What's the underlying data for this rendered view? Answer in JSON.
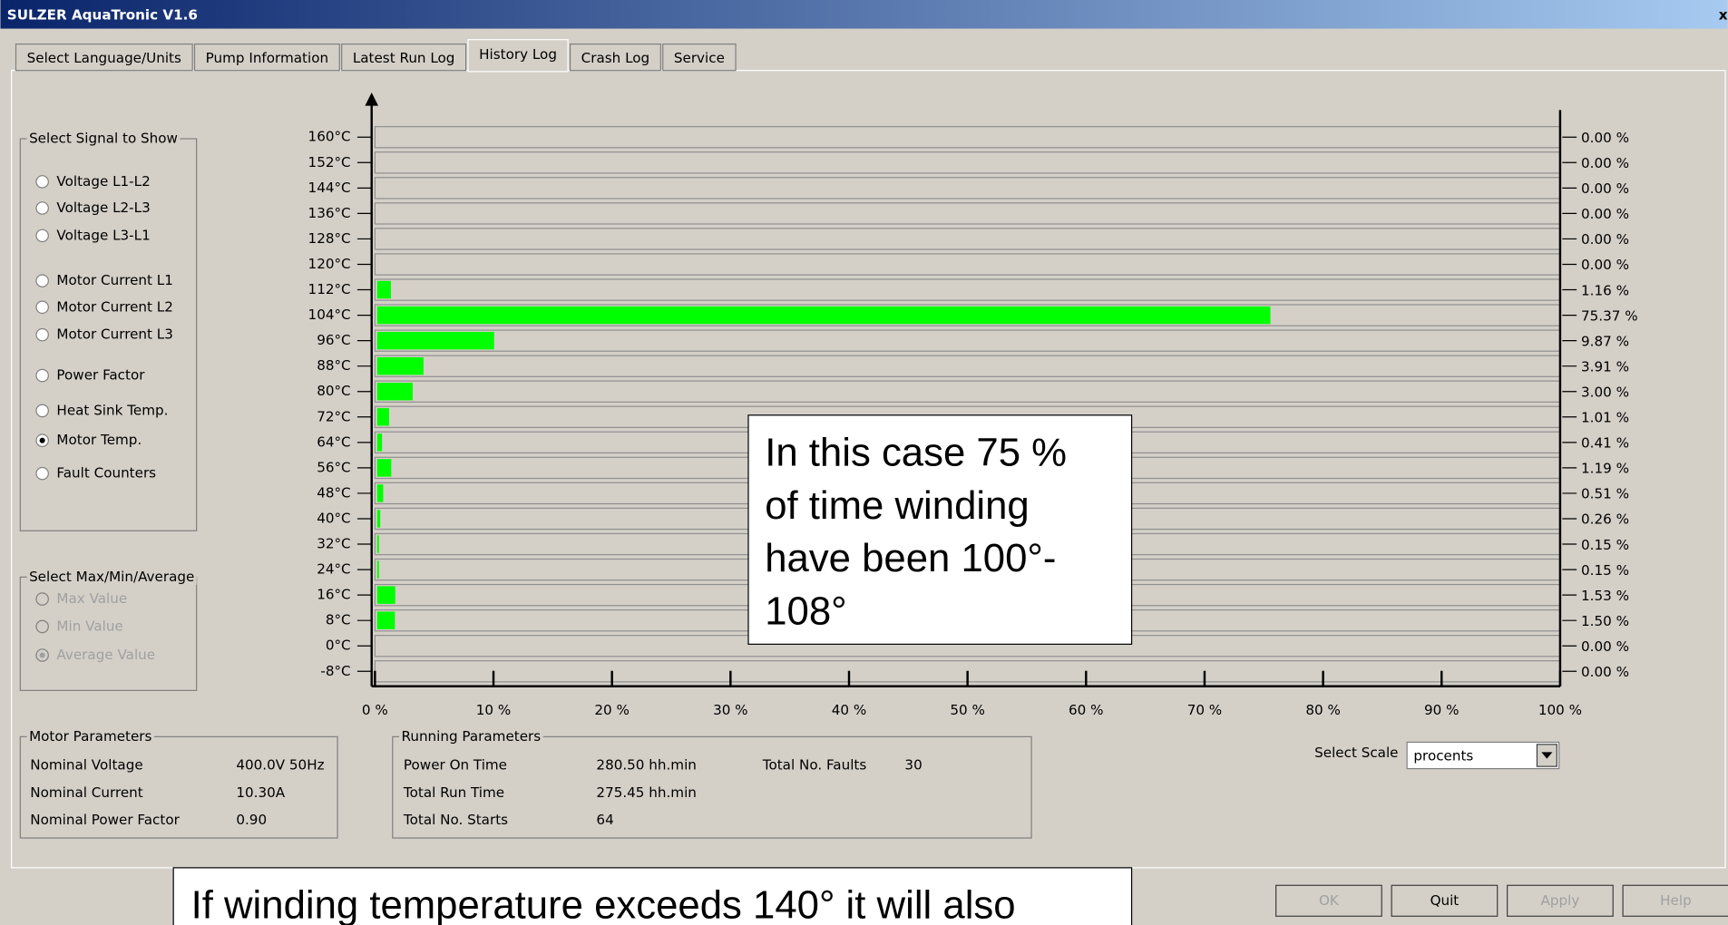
{
  "window": {
    "title": "SULZER AquaTronic V1.6",
    "close": "x"
  },
  "tabs": [
    "Select Language/Units",
    "Pump Information",
    "Latest Run Log",
    "History Log",
    "Crash Log",
    "Service"
  ],
  "active_tab": 3,
  "signal_group": {
    "title": "Select Signal to Show",
    "options": [
      "Voltage L1-L2",
      "Voltage L2-L3",
      "Voltage L3-L1",
      "Motor Current L1",
      "Motor Current L2",
      "Motor Current L3",
      "Power Factor",
      "Heat Sink Temp.",
      "Motor Temp.",
      "Fault Counters"
    ],
    "selected": 8
  },
  "mode_group": {
    "title": "Select Max/Min/Average",
    "options": [
      "Max Value",
      "Min Value",
      "Average Value"
    ],
    "selected": 2
  },
  "chart_data": {
    "type": "hbar",
    "categories": [
      "160°C",
      "152°C",
      "144°C",
      "136°C",
      "128°C",
      "120°C",
      "112°C",
      "104°C",
      "96°C",
      "88°C",
      "80°C",
      "72°C",
      "64°C",
      "56°C",
      "48°C",
      "40°C",
      "32°C",
      "24°C",
      "16°C",
      "8°C",
      "0°C",
      "-8°C"
    ],
    "values": [
      0.0,
      0.0,
      0.0,
      0.0,
      0.0,
      0.0,
      1.16,
      75.37,
      9.87,
      3.91,
      3.0,
      1.01,
      0.41,
      1.19,
      0.51,
      0.26,
      0.15,
      0.15,
      1.53,
      1.5,
      0.0,
      0.0
    ],
    "value_labels": [
      "0.00 %",
      "0.00 %",
      "0.00 %",
      "0.00 %",
      "0.00 %",
      "0.00 %",
      "1.16 %",
      "75.37 %",
      "9.87 %",
      "3.91 %",
      "3.00 %",
      "1.01 %",
      "0.41 %",
      "1.19 %",
      "0.51 %",
      "0.26 %",
      "0.15 %",
      "0.15 %",
      "1.53 %",
      "1.50 %",
      "0.00 %",
      "0.00 %"
    ],
    "color": "#00ff00",
    "xlim": [
      0,
      100
    ],
    "xticks": [
      {
        "value": 0,
        "label": "0 %"
      },
      {
        "value": 10,
        "label": "10 %"
      },
      {
        "value": 20,
        "label": "20 %"
      },
      {
        "value": 30,
        "label": "30 %"
      },
      {
        "value": 40,
        "label": "40 %"
      },
      {
        "value": 50,
        "label": "50 %"
      },
      {
        "value": 60,
        "label": "60 %"
      },
      {
        "value": 70,
        "label": "70 %"
      },
      {
        "value": 80,
        "label": "80 %"
      },
      {
        "value": 90,
        "label": "90 %"
      },
      {
        "value": 100,
        "label": "100 %"
      }
    ]
  },
  "motor_parameters": {
    "title": "Motor Parameters",
    "rows": [
      [
        "Nominal Voltage",
        "400.0V 50Hz"
      ],
      [
        "Nominal Current",
        "10.30A"
      ],
      [
        "Nominal Power Factor",
        "0.90"
      ]
    ]
  },
  "running_parameters": {
    "title": "Running Parameters",
    "rows": [
      [
        "Power On Time",
        "280.50 hh.min"
      ],
      [
        "Total Run Time",
        "275.45 hh.min"
      ],
      [
        "Total No. Starts",
        "64"
      ]
    ],
    "extra": [
      "Total No. Faults",
      "30"
    ]
  },
  "scale": {
    "label": "Select Scale",
    "value": "procents"
  },
  "buttons": [
    "OK",
    "Quit",
    "Apply",
    "Help"
  ],
  "annotation": [
    "In this case 75 %",
    "of time winding",
    "have been 100°-",
    "108°"
  ],
  "footer_note": "If winding temperature exceeds 140° it will also"
}
